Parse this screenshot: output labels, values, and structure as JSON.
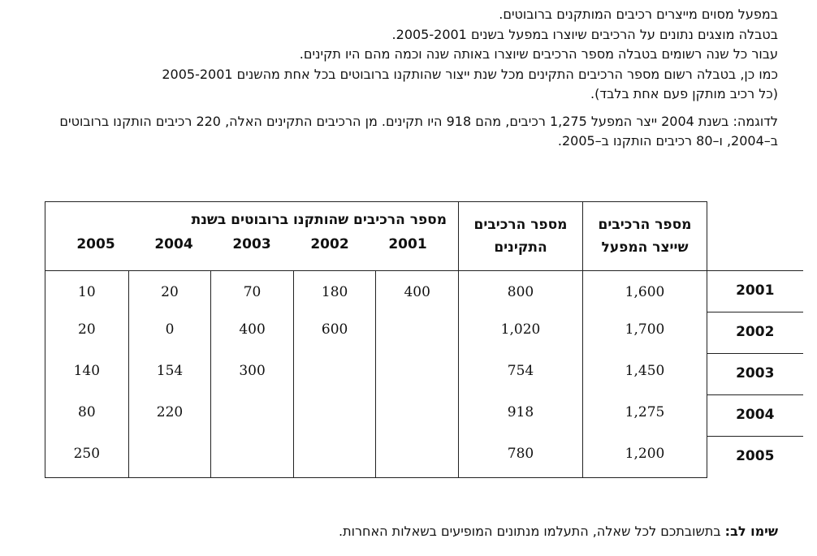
{
  "intro": {
    "line1": "במפעל מסוים מייצרים רכיבים המותקנים ברובוטים.",
    "line2": "בטבלה מוצגים נתונים על הרכיבים שיוצרו במפעל בשנים 2005-2001.",
    "line3": "עבור כל שנה רשומים בטבלה מספר הרכיבים שיוצרו באותה שנה וכמה מהם היו תקינים.",
    "line4": "כמו כן, בטבלה רשום מספר הרכיבים התקינים מכל שנת ייצור שהותקנו ברובוטים בכל אחת מהשנים 2005-2001",
    "line5": "(כל רכיב מותקן פעם אחת בלבד).",
    "example": "לדוגמה: בשנת 2004 ייצר המפעל 1,275 רכיבים, מהם 918 היו תקינים.  מן הרכיבים התקינים האלה, 220 רכיבים הותקנו ברובוטים ב–2004, ו–80 רכיבים הותקנו ב–2005."
  },
  "table": {
    "header_produced": "מספר הרכיבים שייצר המפעל",
    "header_valid": "מספר הרכיבים התקינים",
    "header_installed_group": "מספר הרכיבים שהותקנו ברובוטים בשנת",
    "install_years": [
      "2001",
      "2002",
      "2003",
      "2004",
      "2005"
    ],
    "rows": [
      {
        "year": "2001",
        "produced": "1,600",
        "valid": "800",
        "installed": [
          "400",
          "180",
          "70",
          "20",
          "10"
        ]
      },
      {
        "year": "2002",
        "produced": "1,700",
        "valid": "1,020",
        "installed": [
          "",
          "600",
          "400",
          "0",
          "20"
        ]
      },
      {
        "year": "2003",
        "produced": "1,450",
        "valid": "754",
        "installed": [
          "",
          "",
          "300",
          "154",
          "140"
        ]
      },
      {
        "year": "2004",
        "produced": "1,275",
        "valid": "918",
        "installed": [
          "",
          "",
          "",
          "220",
          "80"
        ]
      },
      {
        "year": "2005",
        "produced": "1,200",
        "valid": "780",
        "installed": [
          "",
          "",
          "",
          "",
          "250"
        ]
      }
    ]
  },
  "note": {
    "label": "שימו לב:",
    "text": " בתשובתכם לכל שאלה, התעלמו מנתונים המופיעים בשאלות האחרות."
  }
}
